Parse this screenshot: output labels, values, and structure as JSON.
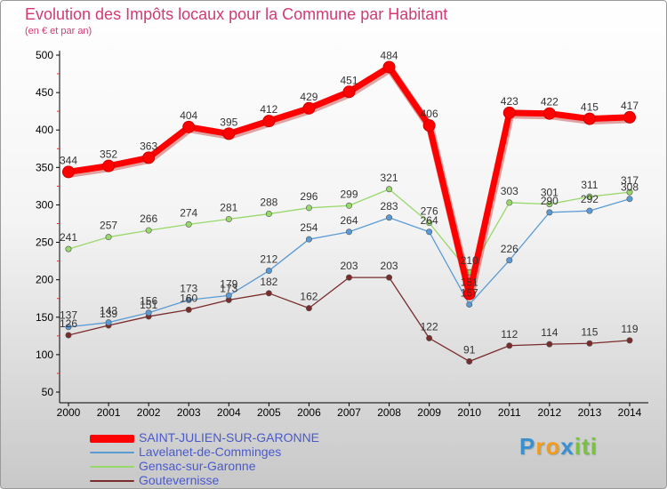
{
  "header": {
    "title": "Evolution des Impôts locaux pour la Commune par Habitant",
    "subtitle": "(en € et par an)"
  },
  "chart_data": {
    "type": "line",
    "title": "Evolution des Impôts locaux pour la Commune par Habitant",
    "subtitle": "(en € et par an)",
    "xlabel": "",
    "ylabel": "",
    "ylim": [
      50,
      500
    ],
    "yticks": [
      50,
      100,
      150,
      200,
      250,
      300,
      350,
      400,
      450,
      500
    ],
    "x": [
      "2000",
      "2001",
      "2002",
      "2003",
      "2004",
      "2005",
      "2006",
      "2007",
      "2008",
      "2009",
      "2010",
      "2011",
      "2012",
      "2013",
      "2014"
    ],
    "legend_position": "bottom-left",
    "grid": false,
    "series": [
      {
        "name": "SAINT-JULIEN-SUR-GARONNE",
        "color": "#ff0000",
        "values": [
          344,
          352,
          363,
          404,
          395,
          412,
          429,
          451,
          484,
          406,
          181,
          423,
          422,
          415,
          417
        ]
      },
      {
        "name": "Lavelanet-de-Comminges",
        "color": "#5b9bd5",
        "values": [
          137,
          143,
          156,
          173,
          179,
          212,
          254,
          264,
          283,
          264,
          167,
          226,
          290,
          292,
          308
        ]
      },
      {
        "name": "Gensac-sur-Garonne",
        "color": "#99d86a",
        "values": [
          241,
          257,
          266,
          274,
          281,
          288,
          296,
          299,
          321,
          276,
          210,
          303,
          301,
          311,
          317
        ]
      },
      {
        "name": "Goutevernisse",
        "color": "#7a2c2c",
        "values": [
          126,
          139,
          151,
          160,
          173,
          182,
          162,
          203,
          203,
          122,
          91,
          112,
          114,
          115,
          119
        ]
      }
    ]
  },
  "logo": {
    "letters": [
      {
        "char": "P",
        "color": "#3a8fd0"
      },
      {
        "char": "r",
        "color": "#f29b1c"
      },
      {
        "char": "o",
        "color": "#f29b1c"
      },
      {
        "char": "x",
        "color": "#3a8fd0"
      },
      {
        "char": "i",
        "color": "#7cc043"
      },
      {
        "char": "t",
        "color": "#7cc043"
      },
      {
        "char": "i",
        "color": "#7cc043"
      }
    ]
  }
}
